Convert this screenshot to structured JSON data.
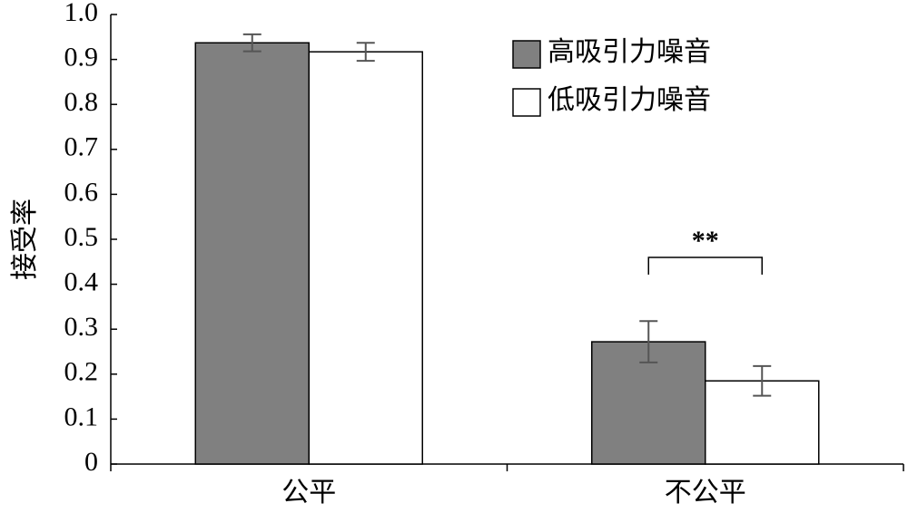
{
  "chart_data": {
    "type": "bar",
    "y_label": "接受率",
    "categories": [
      "公平",
      "不公平"
    ],
    "series": [
      {
        "name": "高吸引力噪音",
        "color": "#808080",
        "values": [
          0.937,
          0.272
        ],
        "errors": [
          0.019,
          0.046
        ]
      },
      {
        "name": "低吸引力噪音",
        "color": "#ffffff",
        "values": [
          0.917,
          0.185
        ],
        "errors": [
          0.02,
          0.033
        ]
      }
    ],
    "annotation": "**",
    "ylim": [
      0,
      1
    ],
    "yticks": [
      0,
      0.1,
      0.2,
      0.3,
      0.4,
      0.5,
      0.6,
      0.7,
      0.8,
      0.9,
      {
        "value": 1,
        "label": "1.0"
      }
    ],
    "legend": "top-right"
  }
}
